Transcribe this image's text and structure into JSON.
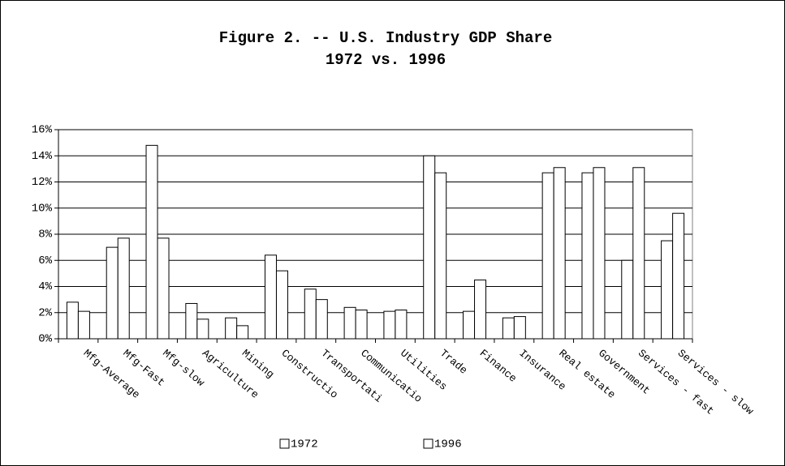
{
  "chart_data": {
    "type": "bar",
    "title": "Figure 2. -- U.S. Industry GDP Share",
    "subtitle": "1972 vs. 1996",
    "categories": [
      "Mfg-Average",
      "Mfg-Fast",
      "Mfg-slow",
      "Agriculture",
      "Mining",
      "Constructio",
      "Transportati",
      "Communicatio",
      "Utilities",
      "Trade",
      "Finance",
      "Insurance",
      "Real estate",
      "Government",
      "Services - fast",
      "Services - slow"
    ],
    "series": [
      {
        "name": "1972",
        "color": "#ffffff",
        "values": [
          2.8,
          7.0,
          14.8,
          2.7,
          1.6,
          6.4,
          3.8,
          2.4,
          2.1,
          14.0,
          2.1,
          1.6,
          12.7,
          12.7,
          6.0,
          7.5
        ]
      },
      {
        "name": "1996",
        "color": "#ffffff",
        "values": [
          2.1,
          7.7,
          7.7,
          1.5,
          1.0,
          5.2,
          3.0,
          2.2,
          2.2,
          12.7,
          4.5,
          1.7,
          13.1,
          13.1,
          13.1,
          9.6
        ]
      }
    ],
    "ylim": [
      0,
      16
    ],
    "yticks": [
      {
        "value": 0,
        "label": "0%"
      },
      {
        "value": 2,
        "label": "2%"
      },
      {
        "value": 4,
        "label": "4%"
      },
      {
        "value": 6,
        "label": "6%"
      },
      {
        "value": 8,
        "label": "8%"
      },
      {
        "value": 10,
        "label": "10%"
      },
      {
        "value": 12,
        "label": "12%"
      },
      {
        "value": 14,
        "label": "14%"
      },
      {
        "value": 16,
        "label": "16%"
      }
    ],
    "grid": true,
    "legend": "bottom"
  }
}
